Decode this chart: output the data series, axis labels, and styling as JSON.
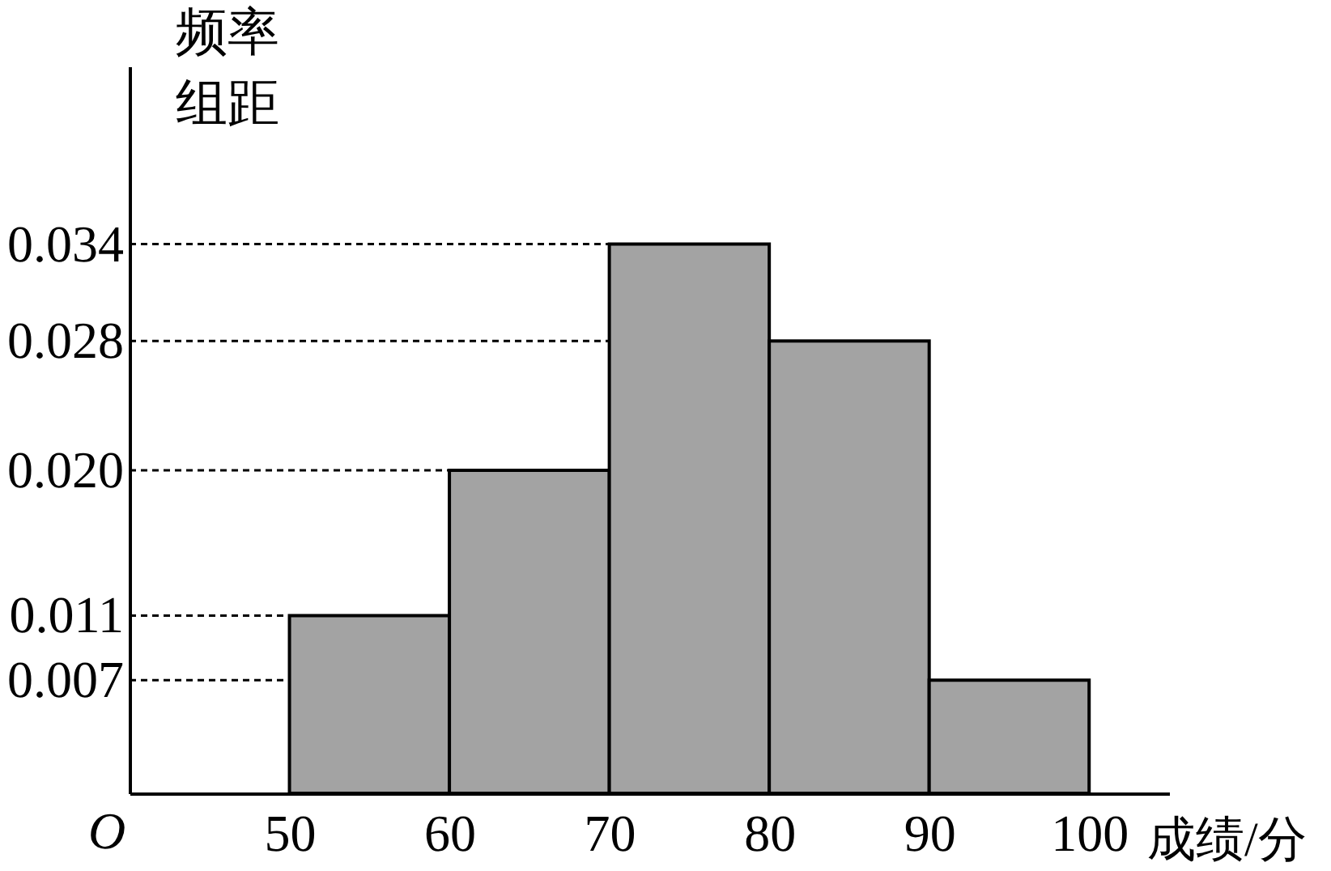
{
  "chart_data": {
    "type": "histogram",
    "xlabel": "成绩/分",
    "ylabel": "频率组距",
    "bins": [
      50,
      60,
      70,
      80,
      90,
      100
    ],
    "values": [
      0.011,
      0.02,
      0.034,
      0.028,
      0.007
    ],
    "color": "#a3a3a3",
    "xlim": [
      40,
      105
    ],
    "xticks": [
      50,
      60,
      70,
      80,
      90,
      100
    ],
    "ylim": [
      0,
      0.045
    ],
    "yticks": [
      {
        "value": 0.007,
        "label": "0.007"
      },
      {
        "value": 0.011,
        "label": "0.011"
      },
      {
        "value": 0.02,
        "label": "0.020"
      },
      {
        "value": 0.028,
        "label": "0.028"
      },
      {
        "value": 0.034,
        "label": "0.034"
      }
    ],
    "ref_lines": [
      {
        "axis": "y",
        "value": 0.007,
        "line_style": "dashed"
      },
      {
        "axis": "y",
        "value": 0.011,
        "line_style": "dashed"
      },
      {
        "axis": "y",
        "value": 0.02,
        "line_style": "dashed"
      },
      {
        "axis": "y",
        "value": 0.028,
        "line_style": "dashed"
      },
      {
        "axis": "y",
        "value": 0.034,
        "line_style": "dashed"
      }
    ],
    "annotations": [
      "O"
    ]
  }
}
